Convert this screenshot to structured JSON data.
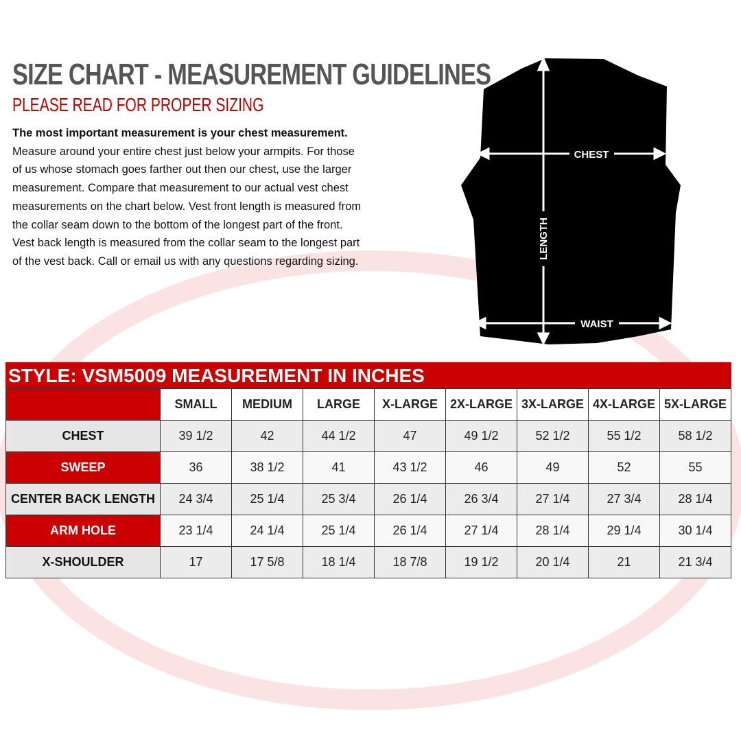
{
  "header": {
    "title": "SIZE CHART - MEASUREMENT GUIDELINES",
    "subtitle": "PLEASE READ FOR PROPER SIZING"
  },
  "intro": {
    "lead": "The most important measurement is your chest measurement.",
    "lines": [
      "Measure around your entire chest just below your armpits.  For those",
      "of us whose stomach goes farther out then our chest, use the larger",
      "measurement. Compare that measurement to our actual vest chest",
      "measurements on the chart below.  Vest front length is measured from",
      "the collar seam down to the bottom of the longest part of the front.",
      "Vest back length is measured from the collar seam to the longest part",
      "of the vest back.  Call or email us with any questions regarding sizing."
    ]
  },
  "diagram": {
    "chest": "CHEST",
    "length": "LENGTH",
    "waist": "WAIST"
  },
  "table": {
    "title": "STYLE: VSM5009 MEASUREMENT IN INCHES",
    "columns": [
      "SMALL",
      "MEDIUM",
      "LARGE",
      "X-LARGE",
      "2X-LARGE",
      "3X-LARGE",
      "4X-LARGE",
      "5X-LARGE"
    ],
    "rows": [
      {
        "label": "CHEST",
        "cells": [
          "39 1/2",
          "42",
          "44 1/2",
          "47",
          "49 1/2",
          "52 1/2",
          "55 1/2",
          "58 1/2"
        ]
      },
      {
        "label": "SWEEP",
        "cells": [
          "36",
          "38 1/2",
          "41",
          "43 1/2",
          "46",
          "49",
          "52",
          "55"
        ]
      },
      {
        "label": "CENTER BACK LENGTH",
        "cells": [
          "24 3/4",
          "25 1/4",
          "25 3/4",
          "26 1/4",
          "26 3/4",
          "27 1/4",
          "27 3/4",
          "28 1/4"
        ]
      },
      {
        "label": "ARM HOLE",
        "cells": [
          "23 1/4",
          "24 1/4",
          "25 1/4",
          "26 1/4",
          "27 1/4",
          "28 1/4",
          "29 1/4",
          "30 1/4"
        ]
      },
      {
        "label": "X-SHOULDER",
        "cells": [
          "17",
          "17 5/8",
          "18 1/4",
          "18 7/8",
          "19 1/2",
          "20 1/4",
          "21",
          "21 3/4"
        ]
      }
    ]
  }
}
